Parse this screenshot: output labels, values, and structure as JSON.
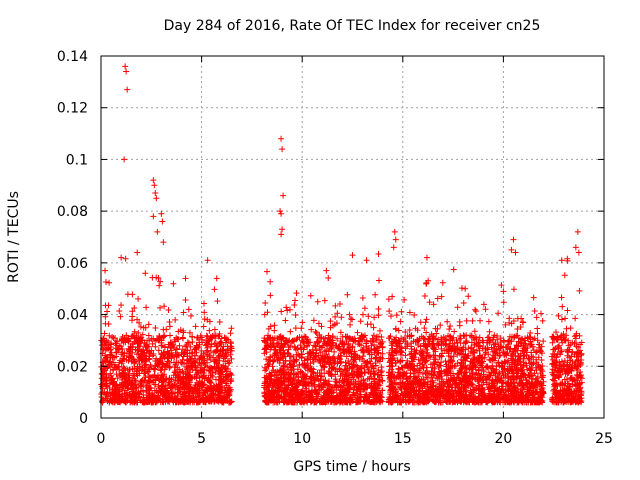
{
  "chart_data": {
    "type": "scatter",
    "title": "Day 284 of 2016, Rate Of TEC Index for receiver cn25",
    "xlabel": "GPS time / hours",
    "ylabel": "ROTI / TECUs",
    "xlim": [
      0,
      25
    ],
    "ylim": [
      0,
      0.14
    ],
    "xticks": [
      "0",
      "5",
      "10",
      "15",
      "20",
      "25"
    ],
    "yticks": [
      "0",
      "0.02",
      "0.04",
      "0.06",
      "0.08",
      "0.1",
      "0.12",
      "0.14"
    ],
    "grid": true,
    "marker": "+",
    "series": [
      {
        "name": "cn25",
        "color": "#ff0000",
        "segments": [
          [
            0,
            6.5
          ],
          [
            8.1,
            14.0
          ],
          [
            14.3,
            22.0
          ],
          [
            22.4,
            23.9
          ]
        ],
        "highlights": [
          {
            "x": 1.2,
            "y": 0.136
          },
          {
            "x": 1.25,
            "y": 0.134
          },
          {
            "x": 1.3,
            "y": 0.127
          },
          {
            "x": 1.15,
            "y": 0.1
          },
          {
            "x": 2.6,
            "y": 0.092
          },
          {
            "x": 2.65,
            "y": 0.09
          },
          {
            "x": 2.7,
            "y": 0.087
          },
          {
            "x": 2.75,
            "y": 0.085
          },
          {
            "x": 2.6,
            "y": 0.078
          },
          {
            "x": 3.0,
            "y": 0.079
          },
          {
            "x": 3.05,
            "y": 0.076
          },
          {
            "x": 3.1,
            "y": 0.068
          },
          {
            "x": 2.8,
            "y": 0.072
          },
          {
            "x": 8.95,
            "y": 0.108
          },
          {
            "x": 9.0,
            "y": 0.104
          },
          {
            "x": 9.05,
            "y": 0.086
          },
          {
            "x": 8.9,
            "y": 0.08
          },
          {
            "x": 8.95,
            "y": 0.079
          },
          {
            "x": 9.0,
            "y": 0.073
          },
          {
            "x": 8.95,
            "y": 0.071
          },
          {
            "x": 14.6,
            "y": 0.072
          },
          {
            "x": 14.65,
            "y": 0.069
          },
          {
            "x": 14.55,
            "y": 0.066
          },
          {
            "x": 20.5,
            "y": 0.069
          },
          {
            "x": 20.4,
            "y": 0.065
          },
          {
            "x": 20.6,
            "y": 0.064
          },
          {
            "x": 23.7,
            "y": 0.072
          },
          {
            "x": 23.6,
            "y": 0.066
          },
          {
            "x": 23.75,
            "y": 0.064
          },
          {
            "x": 5.3,
            "y": 0.061
          },
          {
            "x": 0.2,
            "y": 0.057
          },
          {
            "x": 12.5,
            "y": 0.063
          },
          {
            "x": 13.2,
            "y": 0.061
          },
          {
            "x": 16.2,
            "y": 0.062
          },
          {
            "x": 22.9,
            "y": 0.061
          },
          {
            "x": 1.0,
            "y": 0.062
          },
          {
            "x": 1.8,
            "y": 0.064
          },
          {
            "x": 2.2,
            "y": 0.056
          },
          {
            "x": 4.2,
            "y": 0.054
          },
          {
            "x": 11.2,
            "y": 0.057
          },
          {
            "x": 18.1,
            "y": 0.05
          }
        ]
      }
    ]
  }
}
